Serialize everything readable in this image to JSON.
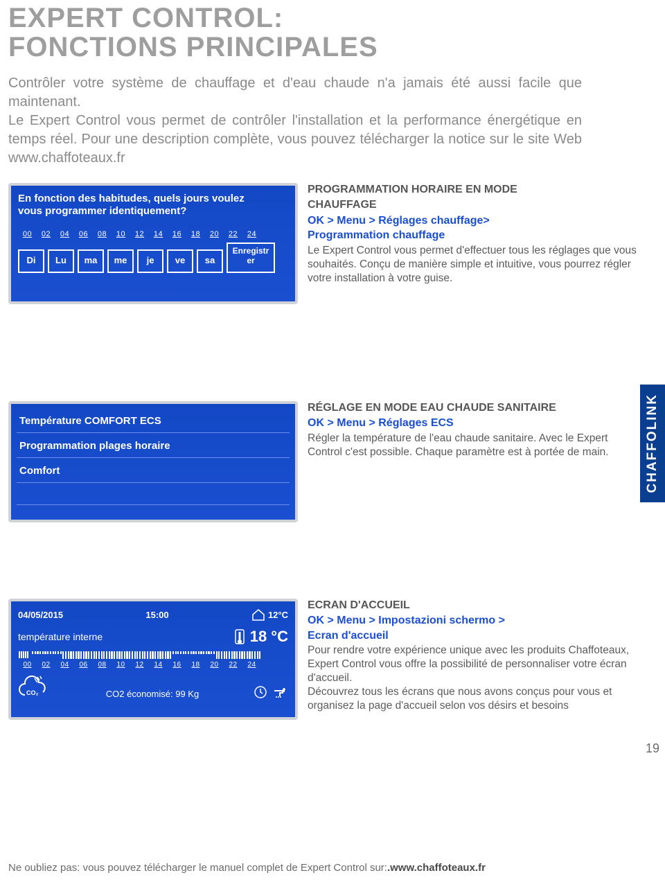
{
  "title_line1": "EXPERT CONTROL:",
  "title_line2": "FONCTIONS PRINCIPALES",
  "intro": "Contrôler votre système de chauffage et d'eau chaude n'a jamais été aussi facile que maintenant.\nLe Expert Control vous permet de contrôler l'installation et la performance énergétique en temps réel. Pour une description complète, vous pouvez télécharger la notice sur le site Web www.chaffoteaux.fr",
  "side_tab": "CHAFFOLINK",
  "page_number": "19",
  "footer_plain": "Ne oubliez pas: vous pouvez télécharger le manuel complet de Expert Control sur:",
  "footer_bold": ".www.chaffoteaux.fr",
  "screen1": {
    "question_l1": "En fonction des habitudes, quels jours voulez",
    "question_l2": "vous programmer identiquement?",
    "hours": [
      "00",
      "02",
      "04",
      "06",
      "08",
      "10",
      "12",
      "14",
      "16",
      "18",
      "20",
      "22",
      "24"
    ],
    "days": [
      "Di",
      "Lu",
      "ma",
      "me",
      "je",
      "ve",
      "sa"
    ],
    "save_l1": "Enregistr",
    "save_l2": "er"
  },
  "desc1": {
    "heading_l1": "PROGRAMMATION HORAIRE EN MODE",
    "heading_l2": "CHAUFFAGE",
    "path_l1": "OK > Menu > Réglages chauffage>",
    "path_l2": "Programmation chauffage",
    "body": "Le Expert Control vous permet d'effectuer tous les réglages que vous souhaités. Conçu de manière simple et intuitive, vous pourrez régler votre installation à votre guise."
  },
  "screen2": {
    "line1": "Température COMFORT ECS",
    "line2": "Programmation plages horaire",
    "line3": "Comfort"
  },
  "desc2": {
    "heading": "RÉGLAGE EN MODE EAU CHAUDE SANITAIRE",
    "path": "OK > Menu > Réglages ECS",
    "body": "Régler la température de l'eau chaude sanitaire. Avec le Expert Control c'est possible. Chaque paramètre est à portée de main."
  },
  "screen3": {
    "date": "04/05/2015",
    "time": "15:00",
    "outdoor": "12°C",
    "label": "température interne",
    "big_temp": "18 °C",
    "hours": [
      "00",
      "02",
      "04",
      "06",
      "08",
      "10",
      "12",
      "14",
      "16",
      "18",
      "20",
      "22",
      "24"
    ],
    "co2_sub": "CO₂",
    "co2_line": "CO2 économisé:  99 Kg"
  },
  "desc3": {
    "heading": "ECRAN D'ACCUEIL",
    "path_l1": "OK > Menu > Impostazioni schermo >",
    "path_l2": "Ecran d'accueil",
    "body": "Pour rendre votre expérience unique avec les produits Chaffoteaux, Expert Control vous offre la possibilité de personnaliser votre écran d'accueil.\nDécouvrez tous les écrans que nous avons conçus pour vous et organisez la page d'accueil selon vos désirs et besoins"
  },
  "colors": {
    "title_gray": "#9e9e9e",
    "body_gray": "#5b5b5b",
    "blue_path": "#1a4fd0",
    "screen_bg": "#1348c5",
    "side_bg": "#0a3f8f"
  }
}
